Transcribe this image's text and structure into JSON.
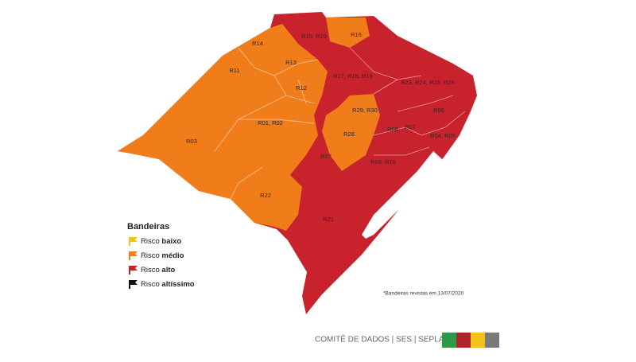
{
  "regions": [
    "R14",
    "R15, R20",
    "R16",
    "R13",
    "R11",
    "R12",
    "R17, R18, R19",
    "R23, R24, R25, R26",
    "R29, R30",
    "R06",
    "R01, R02",
    "R08",
    "R07",
    "R03",
    "R28",
    "R04, R05",
    "R27",
    "R09, R10",
    "R22",
    "R21"
  ],
  "legend": {
    "title": "Bandeiras",
    "items": [
      {
        "prefix": "Risco",
        "level": "baixo",
        "color": "#f2c31a"
      },
      {
        "prefix": "Risco",
        "level": "médio",
        "color": "#f07c1a"
      },
      {
        "prefix": "Risco",
        "level": "alto",
        "color": "#c8232c"
      },
      {
        "prefix": "Risco",
        "level": "altíssimo",
        "color": "#111111"
      }
    ]
  },
  "note": "*Bandeiras revistas em 13/07/2020",
  "footer": "COMITÊ DE DADOS |  SES  |  SEPLAG"
}
